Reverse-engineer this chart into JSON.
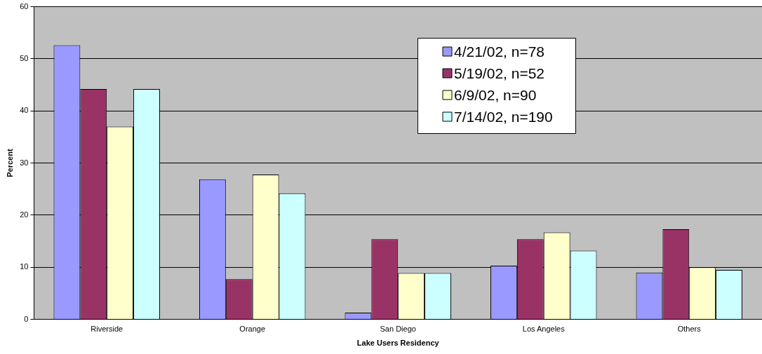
{
  "chart_data": {
    "type": "bar",
    "xlabel": "Lake Users Residency",
    "ylabel": "Percent",
    "categories": [
      "Riverside",
      "Orange",
      "San Diego",
      "Los Angeles",
      "Others"
    ],
    "series": [
      {
        "name": "4/21/02, n=78",
        "color": "#9999ff",
        "values": [
          52.6,
          26.9,
          1.3,
          10.3,
          9.0
        ]
      },
      {
        "name": "5/19/02, n=52",
        "color": "#993366",
        "values": [
          44.2,
          7.7,
          15.4,
          15.4,
          17.3
        ]
      },
      {
        "name": "6/9/02, n=90",
        "color": "#ffffcc",
        "values": [
          37.0,
          27.8,
          8.9,
          16.7,
          10.0
        ]
      },
      {
        "name": "7/14/02, n=190",
        "color": "#ccffff",
        "values": [
          44.2,
          24.2,
          8.9,
          13.2,
          9.5
        ]
      }
    ],
    "ylim": [
      0,
      60
    ],
    "yticks": [
      0,
      10,
      20,
      30,
      40,
      50,
      60
    ],
    "grid": "y",
    "legend": "top right"
  }
}
